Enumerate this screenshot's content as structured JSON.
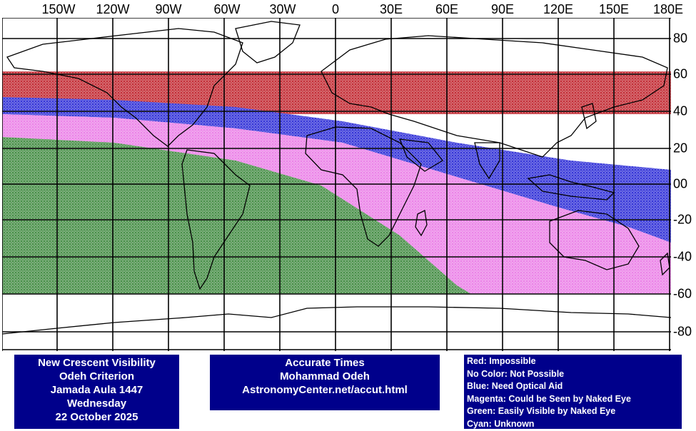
{
  "map": {
    "longitude_labels": [
      "150W",
      "120W",
      "90W",
      "60W",
      "30W",
      "0",
      "30E",
      "60E",
      "90E",
      "120E",
      "150E",
      "180E"
    ],
    "latitude_labels": [
      "80",
      "60",
      "40",
      "20",
      "00",
      "-20",
      "-40",
      "-60",
      "-80"
    ],
    "zones": [
      {
        "name": "Red",
        "color": "#c0232c",
        "lat_range": [
          38,
          60
        ],
        "lon_range": [
          -180,
          180
        ]
      },
      {
        "name": "Blue",
        "color": "#2b2bd6",
        "lat_range": "band from 45N in west to 35S in east"
      },
      {
        "name": "Magenta",
        "color": "#ea7ce6",
        "lat_range": "band from 35N in west to 60S in east"
      },
      {
        "name": "Green",
        "color": "#3f8a3f",
        "lat_range": "from 28N in west to 60S, east to about 40E"
      }
    ]
  },
  "info": {
    "title_box": {
      "line1": "New Crescent Visibility",
      "line2": "Odeh Criterion",
      "line3": "Jamada Aula 1447",
      "line4": "Wednesday",
      "line5": "22 October 2025"
    },
    "source_box": {
      "line1": "Accurate Times",
      "line2": "Mohammad Odeh",
      "line3": "AstronomyCenter.net/accut.html"
    },
    "legend": [
      "Red: Impossible",
      "No Color: Not Possible",
      "Blue: Need Optical Aid",
      "Magenta: Could be Seen by Naked Eye",
      "Green: Easily Visible by Naked Eye",
      "Cyan: Unknown"
    ]
  },
  "colors": {
    "red": "#c0232c",
    "blue": "#2b2bd6",
    "magenta": "#ea7ce6",
    "green": "#3f8a3f",
    "panel": "#00008b"
  }
}
